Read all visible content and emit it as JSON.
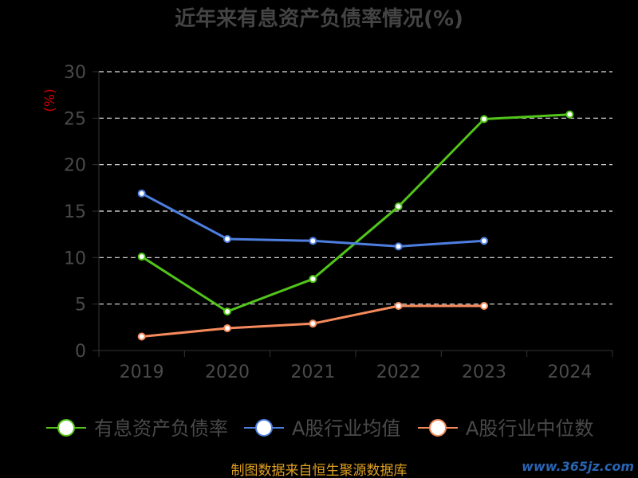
{
  "chart_data": {
    "type": "line",
    "title": "近年来有息资产负债率情况(%)",
    "ylabel": "(%)",
    "xlabel": "",
    "categories": [
      "2019",
      "2020",
      "2021",
      "2022",
      "2023",
      "2024"
    ],
    "ylim": [
      0,
      30
    ],
    "yticks": [
      0,
      5,
      10,
      15,
      20,
      25,
      30
    ],
    "grid": true,
    "legend_position": "bottom",
    "series": [
      {
        "name": "有息资产负债率",
        "color": "#52c41a",
        "values": [
          10.1,
          4.2,
          7.7,
          15.5,
          24.9,
          25.4
        ]
      },
      {
        "name": "A股行业均值",
        "color": "#4e7fe0",
        "values": [
          16.9,
          12.0,
          11.8,
          11.2,
          11.8,
          null
        ]
      },
      {
        "name": "A股行业中位数",
        "color": "#f58a5c",
        "values": [
          1.5,
          2.4,
          2.9,
          4.8,
          4.8,
          null
        ]
      }
    ]
  },
  "footer": {
    "source_text": "制图数据来自恒生聚源数据库"
  },
  "watermark": {
    "text": "www.365jz.com"
  }
}
